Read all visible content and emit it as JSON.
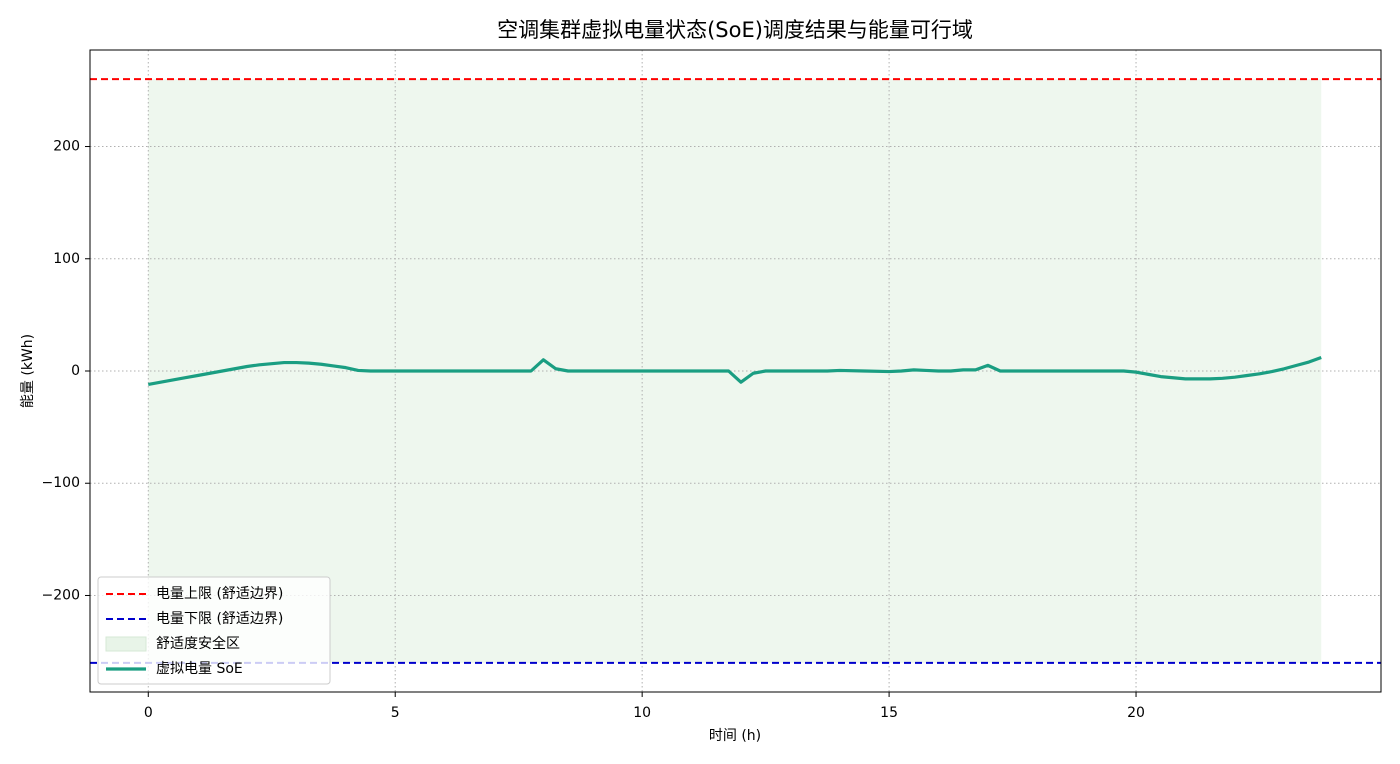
{
  "chart_data": {
    "type": "line",
    "title": "空调集群虚拟电量状态(SoE)调度结果与能量可行域",
    "x_label": "时间 (h)",
    "y_label": "能量 (kWh)",
    "xlim": [
      -1.18,
      24.96
    ],
    "ylim": [
      -286,
      286
    ],
    "xticks": [
      0,
      5,
      10,
      15,
      20
    ],
    "yticks": [
      {
        "value": -200,
        "label": "−200"
      },
      {
        "value": -100,
        "label": "−100"
      },
      0,
      100,
      200
    ],
    "grid": true,
    "legend_loc": "lower left",
    "upper_bound": {
      "name": "电量上限 (舒适边界)",
      "color": "#ff0000",
      "value": 260
    },
    "lower_bound": {
      "name": "电量下限 (舒适边界)",
      "color": "#0000cc",
      "value": -260
    },
    "safe_zone": {
      "name": "舒适度安全区",
      "color": "#e8f4e8",
      "x": [
        0,
        23.75
      ],
      "range": [
        -260,
        260
      ]
    },
    "series": [
      {
        "name": "虚拟电量 SoE",
        "color": "#1a9e82",
        "x": [
          0,
          0.25,
          0.5,
          0.75,
          1,
          1.25,
          1.5,
          1.75,
          2,
          2.25,
          2.5,
          2.75,
          3,
          3.25,
          3.5,
          3.75,
          4,
          4.25,
          4.5,
          7.75,
          8,
          8.25,
          8.5,
          11.75,
          12,
          12.25,
          12.5,
          13.75,
          14,
          14.5,
          15,
          15.25,
          15.5,
          15.75,
          16,
          16.25,
          16.5,
          16.75,
          17,
          17.25,
          19.75,
          20,
          20.25,
          20.5,
          20.75,
          21,
          21.25,
          21.5,
          21.75,
          22,
          22.25,
          22.5,
          22.75,
          23,
          23.25,
          23.5,
          23.75
        ],
        "values": [
          -12,
          -10,
          -8,
          -6,
          -4,
          -2,
          0,
          2,
          4,
          5.5,
          6.5,
          7.5,
          7.5,
          7,
          6,
          4.5,
          3,
          0.5,
          0,
          0,
          10,
          2,
          0,
          0,
          -10,
          -2,
          0,
          0,
          0.5,
          0,
          -0.5,
          0,
          1,
          0.5,
          0,
          0,
          1,
          1,
          5,
          0,
          0,
          -1,
          -3,
          -5,
          -6,
          -7,
          -7,
          -7,
          -6.5,
          -5.5,
          -4,
          -2.5,
          -0.5,
          2,
          5,
          8,
          12
        ]
      }
    ]
  }
}
